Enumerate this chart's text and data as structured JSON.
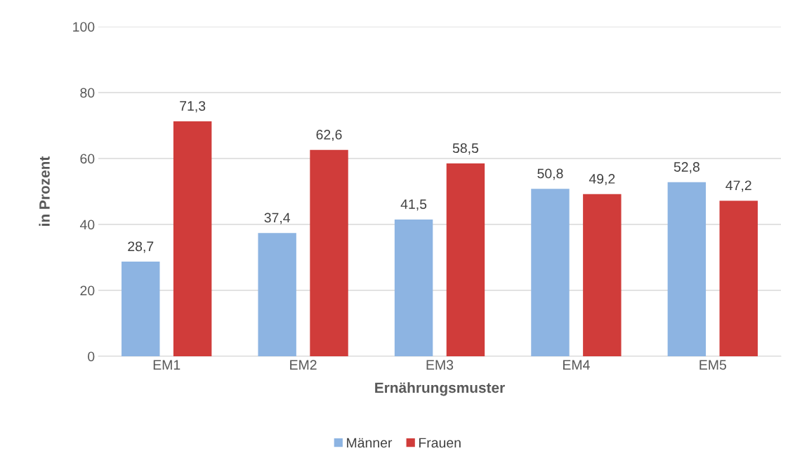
{
  "chart_data": {
    "type": "bar",
    "xlabel": "Ernährungsmuster",
    "ylabel": "in Prozent",
    "categories": [
      "EM1",
      "EM2",
      "EM3",
      "EM4",
      "EM5"
    ],
    "series": [
      {
        "name": "Männer",
        "color": "#8db4e2",
        "values": [
          28.7,
          37.4,
          41.5,
          50.8,
          52.8
        ],
        "value_labels": [
          "28,7",
          "37,4",
          "41,5",
          "50,8",
          "52,8"
        ]
      },
      {
        "name": "Frauen",
        "color": "#d03c3a",
        "values": [
          71.3,
          62.6,
          58.5,
          49.2,
          47.2
        ],
        "value_labels": [
          "71,3",
          "62,6",
          "58,5",
          "49,2",
          "47,2"
        ]
      }
    ],
    "ylim": [
      0,
      100
    ],
    "yticks": [
      0,
      20,
      40,
      60,
      80,
      100
    ],
    "grid": "y",
    "legend": "bottom"
  }
}
